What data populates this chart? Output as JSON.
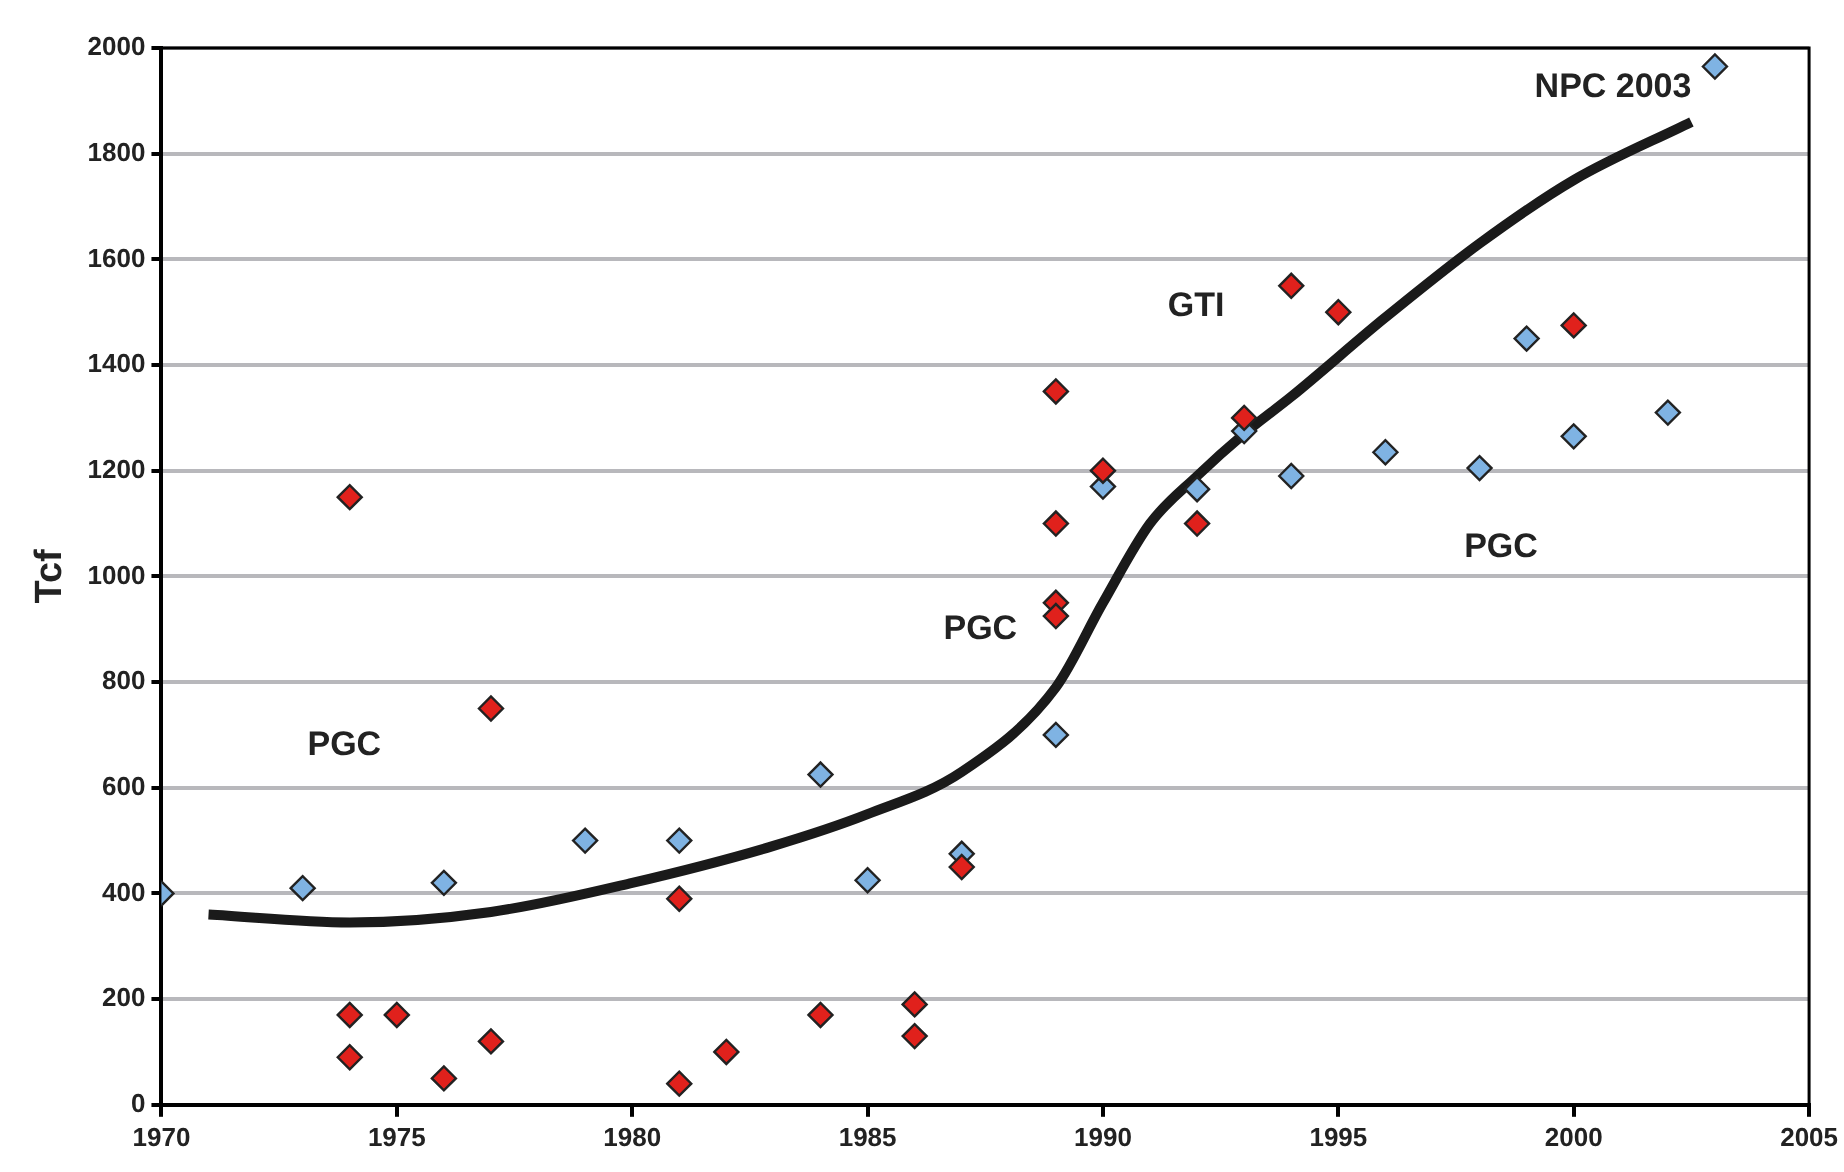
{
  "chart_data": {
    "type": "scatter",
    "ylabel": "Tcf",
    "xlim": [
      1970,
      2005
    ],
    "xticks": [
      1970,
      1975,
      1980,
      1985,
      1990,
      1995,
      2000,
      2005
    ],
    "ylim": [
      0,
      2000
    ],
    "yticks": [
      0,
      200,
      400,
      600,
      800,
      1000,
      1200,
      1400,
      1600,
      1800,
      2000
    ],
    "grid": "y",
    "legend": false,
    "marker": "diamond",
    "series": [
      {
        "color": "#7fb3e3",
        "x": [
          1970,
          1973,
          1976,
          1979,
          1981,
          1984,
          1985,
          1987,
          1989,
          1990,
          1992,
          1993,
          1994,
          1996,
          1998,
          1999,
          2000,
          2002,
          2003
        ],
        "values": [
          400,
          410,
          420,
          500,
          500,
          625,
          425,
          475,
          700,
          1170,
          1165,
          1275,
          1190,
          1235,
          1205,
          1450,
          1265,
          1310,
          1965
        ]
      },
      {
        "color": "#e0211c",
        "x": [
          1974,
          1974,
          1974,
          1975,
          1976,
          1977,
          1977,
          1981,
          1981,
          1982,
          1984,
          1986,
          1986,
          1987,
          1989,
          1989,
          1989,
          1989,
          1990,
          1992,
          1993,
          1994,
          1995,
          2000
        ],
        "values": [
          1150,
          170,
          90,
          170,
          50,
          750,
          120,
          390,
          40,
          100,
          170,
          190,
          130,
          450,
          1350,
          1100,
          950,
          925,
          1200,
          1100,
          1300,
          1550,
          1500,
          1475
        ]
      },
      {
        "type": "line",
        "color": "#1a1a1a",
        "marker": "none",
        "x": [
          1971,
          1974,
          1977,
          1980,
          1983,
          1985,
          1987,
          1989,
          1990,
          1991,
          1992,
          1993,
          1994,
          1996,
          1998,
          2000,
          2002.5
        ],
        "values": [
          360,
          345,
          365,
          420,
          490,
          550,
          630,
          790,
          950,
          1100,
          1190,
          1270,
          1340,
          1490,
          1630,
          1750,
          1860
        ]
      }
    ],
    "annotations": [
      "PGC",
      "PGC",
      "GTI",
      "PGC",
      "NPC 2003"
    ]
  }
}
